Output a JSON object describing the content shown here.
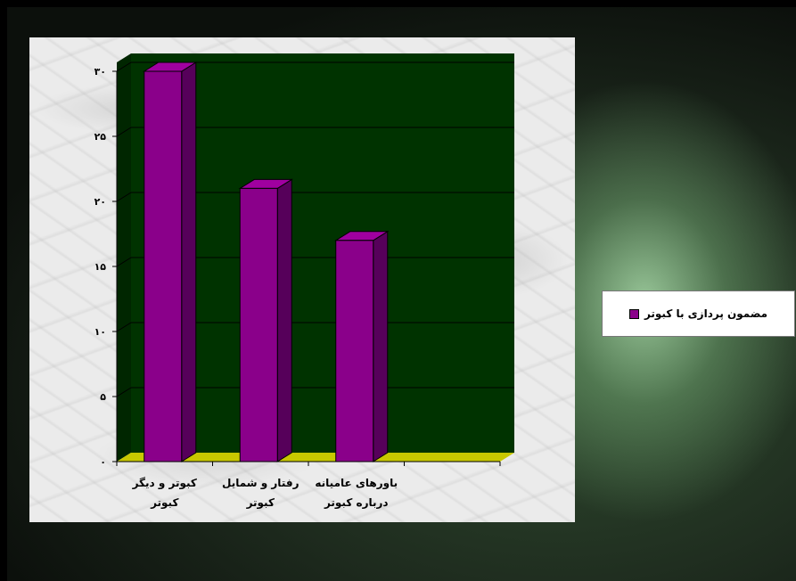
{
  "chart_data": {
    "type": "bar",
    "categories": [
      [
        "کبوتر و دیگر",
        "کبوتر"
      ],
      [
        "رفتار و شمایل",
        "کبوتر"
      ],
      [
        "باورهای عامیانه",
        "درباره کبوتر"
      ]
    ],
    "series": [
      {
        "name": "مضمون پردازی با کبوتر",
        "values": [
          30,
          21,
          17
        ]
      }
    ],
    "ylim": [
      0,
      30
    ],
    "yticks": [
      {
        "value": 0,
        "label": "۰"
      },
      {
        "value": 5,
        "label": "۵"
      },
      {
        "value": 10,
        "label": "۱۰"
      },
      {
        "value": 15,
        "label": "۱۵"
      },
      {
        "value": 20,
        "label": "۲۰"
      },
      {
        "value": 25,
        "label": "۲۵"
      },
      {
        "value": 30,
        "label": "۳۰"
      }
    ],
    "grid": true,
    "legend_position": "right",
    "colors": {
      "bar_front": "#8a008a",
      "bar_side": "#56005a",
      "bar_top": "#a000a0",
      "plot_back": "#003300",
      "plot_floor": "#c8c800"
    }
  }
}
